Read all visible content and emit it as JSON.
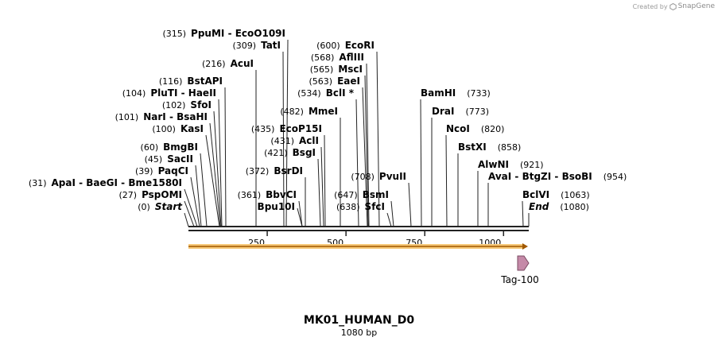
{
  "credit": {
    "prefix": "Created by",
    "brand": "SnapGene",
    "icon": "snapgene-logo-icon"
  },
  "map": {
    "name": "MK01_HUMAN_D0",
    "length_label": "1080 bp",
    "length": 1080,
    "ruler_ticks": [
      {
        "pos": 250,
        "label": "250"
      },
      {
        "pos": 500,
        "label": "500"
      },
      {
        "pos": 750,
        "label": "750"
      },
      {
        "pos": 1000,
        "label": "1000"
      }
    ],
    "feature": {
      "label": "Tag-100",
      "color": "#c58aa8"
    },
    "orf_color": "#f0a020",
    "sites": [
      {
        "pos": 0,
        "pos_label": "(0)",
        "names": [
          "Start"
        ],
        "italic": true
      },
      {
        "pos": 27,
        "pos_label": "(27)",
        "names": [
          "PspOMI"
        ]
      },
      {
        "pos": 31,
        "pos_label": "(31)",
        "names": [
          "ApaI",
          "BaeGI",
          "Bme1580I"
        ]
      },
      {
        "pos": 39,
        "pos_label": "(39)",
        "names": [
          "PaqCI"
        ]
      },
      {
        "pos": 45,
        "pos_label": "(45)",
        "names": [
          "SacII"
        ]
      },
      {
        "pos": 60,
        "pos_label": "(60)",
        "names": [
          "BmgBI"
        ]
      },
      {
        "pos": 100,
        "pos_label": "(100)",
        "names": [
          "KasI"
        ]
      },
      {
        "pos": 101,
        "pos_label": "(101)",
        "names": [
          "NarI",
          "BsaHI"
        ]
      },
      {
        "pos": 102,
        "pos_label": "(102)",
        "names": [
          "SfoI"
        ]
      },
      {
        "pos": 104,
        "pos_label": "(104)",
        "names": [
          "PluTI",
          "HaeII"
        ]
      },
      {
        "pos": 116,
        "pos_label": "(116)",
        "names": [
          "BstAPI"
        ]
      },
      {
        "pos": 216,
        "pos_label": "(216)",
        "names": [
          "AcuI"
        ]
      },
      {
        "pos": 309,
        "pos_label": "(309)",
        "names": [
          "TatI"
        ]
      },
      {
        "pos": 315,
        "pos_label": "(315)",
        "names": [
          "PpuMI",
          "EcoO109I"
        ]
      },
      {
        "pos": 361,
        "pos_label": "(361)",
        "names": [
          "BbvCI"
        ]
      },
      {
        "pos": 372,
        "pos_label": "(372)",
        "names": [
          "BsrDI"
        ]
      },
      {
        "pos": 421,
        "pos_label": "(421)",
        "names": [
          "BsgI"
        ]
      },
      {
        "pos": 431,
        "pos_label": "(431)",
        "names": [
          "AclI"
        ]
      },
      {
        "pos": 435,
        "pos_label": "(435)",
        "names": [
          "EcoP15I"
        ]
      },
      {
        "pos": 482,
        "pos_label": "(482)",
        "names": [
          "MmeI"
        ]
      },
      {
        "pos": 534,
        "pos_label": "(534)",
        "names": [
          "BclI *"
        ]
      },
      {
        "pos": 563,
        "pos_label": "(563)",
        "names": [
          "EaeI"
        ]
      },
      {
        "pos": 565,
        "pos_label": "(565)",
        "names": [
          "MscI"
        ]
      },
      {
        "pos": 568,
        "pos_label": "(568)",
        "names": [
          "AflIII"
        ]
      },
      {
        "pos": 600,
        "pos_label": "(600)",
        "names": [
          "EcoRI"
        ]
      },
      {
        "pos": 638,
        "pos_label": "(638)",
        "names": [
          "SfcI"
        ]
      },
      {
        "pos": 647,
        "pos_label": "(647)",
        "names": [
          "BsmI"
        ]
      },
      {
        "pos": 708,
        "pos_label": "(708)",
        "names": [
          "PvuII"
        ]
      },
      {
        "pos": 733,
        "pos_label": "(733)",
        "names": [
          "BamHI"
        ]
      },
      {
        "pos": 773,
        "pos_label": "(773)",
        "names": [
          "DraI"
        ]
      },
      {
        "pos": 820,
        "pos_label": "(820)",
        "names": [
          "NcoI"
        ]
      },
      {
        "pos": 858,
        "pos_label": "(858)",
        "names": [
          "BstXI"
        ]
      },
      {
        "pos": 921,
        "pos_label": "(921)",
        "names": [
          "AlwNI"
        ]
      },
      {
        "pos": 954,
        "pos_label": "(954)",
        "names": [
          "AvaI",
          "BtgZI",
          "BsoBI"
        ]
      },
      {
        "pos": 1063,
        "pos_label": "(1063)",
        "names": [
          "BclVI"
        ]
      },
      {
        "pos": 1080,
        "pos_label": "(1080)",
        "names": [
          "End"
        ],
        "italic": true
      },
      {
        "pos": 0,
        "pos_label": "",
        "names": [],
        "unlabeled_cut": true,
        "cut_pos": 361,
        "label_text": "Bpu10I"
      }
    ]
  }
}
